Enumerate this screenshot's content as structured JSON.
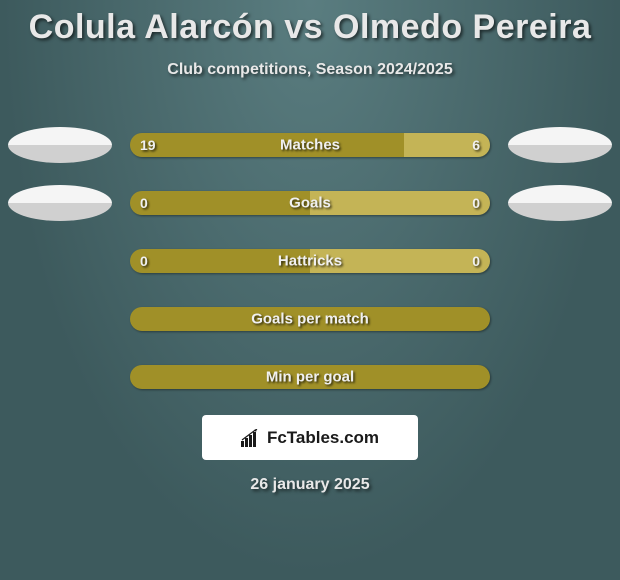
{
  "title": "Colula Alarcón vs Olmedo Pereira",
  "subtitle": "Club competitions, Season 2024/2025",
  "date": "26 january 2025",
  "logo": {
    "text": "FcTables.com"
  },
  "colors": {
    "bar_left": "#a09028",
    "bar_right": "#c4b456",
    "bar_single": "#a09028"
  },
  "stats": [
    {
      "label": "Matches",
      "left_value": "19",
      "right_value": "6",
      "left_pct": 76,
      "right_pct": 24,
      "show_avatars": true
    },
    {
      "label": "Goals",
      "left_value": "0",
      "right_value": "0",
      "left_pct": 50,
      "right_pct": 50,
      "show_avatars": true
    },
    {
      "label": "Hattricks",
      "left_value": "0",
      "right_value": "0",
      "left_pct": 50,
      "right_pct": 50,
      "show_avatars": false
    },
    {
      "label": "Goals per match",
      "left_value": "",
      "right_value": "",
      "left_pct": 100,
      "right_pct": 0,
      "show_avatars": false,
      "single_fill": true
    },
    {
      "label": "Min per goal",
      "left_value": "",
      "right_value": "",
      "left_pct": 100,
      "right_pct": 0,
      "show_avatars": false,
      "single_fill": true
    }
  ]
}
